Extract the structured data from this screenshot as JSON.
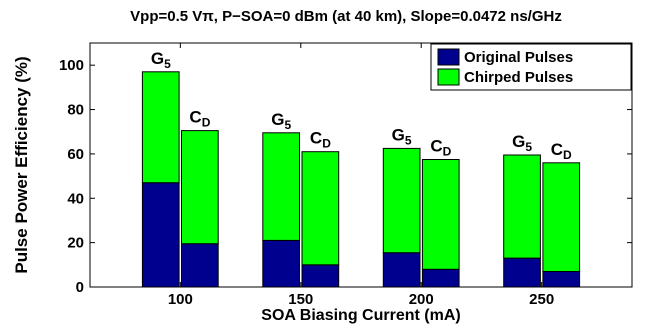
{
  "chart_data": {
    "type": "bar",
    "stacked": true,
    "title": "Vpp=0.5 Vπ, P−SOA=0 dBm (at 40 km), Slope=0.0472 ns/GHz",
    "xlabel": "SOA Biasing Current (mA)",
    "ylabel": "Pulse Power Efficiency (%)",
    "ylim": [
      0,
      110
    ],
    "yticks": [
      "0",
      "20",
      "40",
      "60",
      "80",
      "100"
    ],
    "categories": [
      "100",
      "150",
      "200",
      "250"
    ],
    "bar_labels": [
      {
        "main": "G",
        "sub": "5"
      },
      {
        "main": "C",
        "sub": "D"
      }
    ],
    "series": [
      {
        "name": "Original Pulses",
        "color": "#00008f",
        "G5": [
          47,
          21,
          15.5,
          13
        ],
        "CD": [
          19.5,
          10,
          8,
          7
        ]
      },
      {
        "name": "Chirped Pulses",
        "color": "#00ff00",
        "G5": [
          50,
          48.5,
          47,
          46.5
        ],
        "CD": [
          51,
          51,
          49.5,
          49
        ]
      }
    ],
    "totals": {
      "G5": [
        97,
        69.5,
        62.5,
        59.5
      ],
      "CD": [
        70.5,
        61,
        57.5,
        56
      ]
    },
    "legend_position": "top-right",
    "grid": false
  }
}
